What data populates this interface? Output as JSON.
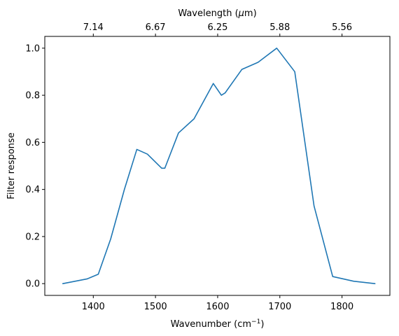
{
  "chart_data": {
    "type": "line",
    "xlabel": "Wavenumber (cm",
    "xlabel_sup": "−1",
    "xlabel_tail": ")",
    "x2label": "Wavelength (",
    "x2label_mu": "μ",
    "x2label_tail": "m)",
    "ylabel": "Filter response",
    "xlim": [
      1322,
      1877
    ],
    "ylim": [
      -0.05,
      1.05
    ],
    "xticks": [
      1400,
      1500,
      1600,
      1700,
      1800
    ],
    "xtick_labels": [
      "1400",
      "1500",
      "1600",
      "1700",
      "1800"
    ],
    "yticks": [
      0.0,
      0.2,
      0.4,
      0.6,
      0.8,
      1.0
    ],
    "ytick_labels": [
      "0.0",
      "0.2",
      "0.4",
      "0.6",
      "0.8",
      "1.0"
    ],
    "x2ticks": [
      1400,
      1500,
      1600,
      1700,
      1800
    ],
    "x2tick_labels": [
      "7.14",
      "6.67",
      "6.25",
      "5.88",
      "5.56"
    ],
    "grid": false,
    "color": "#1f77b4",
    "series": [
      {
        "x": [
          1351,
          1390,
          1408,
          1428,
          1450,
          1470,
          1487,
          1510,
          1515,
          1537,
          1562,
          1593,
          1606,
          1612,
          1639,
          1665,
          1695,
          1724,
          1755,
          1785,
          1819,
          1853
        ],
        "values": [
          0.0,
          0.02,
          0.04,
          0.19,
          0.4,
          0.57,
          0.55,
          0.49,
          0.49,
          0.64,
          0.7,
          0.85,
          0.8,
          0.81,
          0.91,
          0.94,
          1.0,
          0.9,
          0.33,
          0.03,
          0.01,
          0.0
        ]
      }
    ]
  }
}
